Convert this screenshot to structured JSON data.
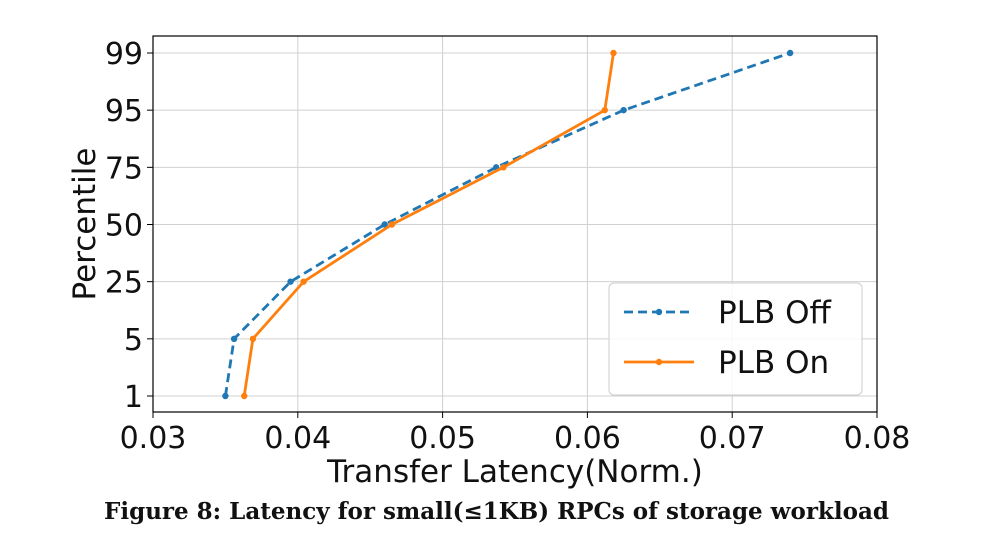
{
  "chart_data": {
    "type": "line",
    "title": "",
    "xlabel": "Transfer Latency(Norm.)",
    "ylabel": "Percentile",
    "xlim": [
      0.03,
      0.08
    ],
    "x_ticks": [
      "0.03",
      "0.04",
      "0.05",
      "0.06",
      "0.07",
      "0.08"
    ],
    "y_categories": [
      "1",
      "5",
      "25",
      "50",
      "75",
      "95",
      "99"
    ],
    "grid": true,
    "legend_position": "lower-right",
    "series": [
      {
        "name": "PLB Off",
        "color": "#1f77b4",
        "line_style": "dashed",
        "x": [
          0.035,
          0.0356,
          0.0395,
          0.046,
          0.0537,
          0.0625,
          0.074
        ],
        "y": [
          "1",
          "5",
          "25",
          "50",
          "75",
          "95",
          "99"
        ]
      },
      {
        "name": "PLB On",
        "color": "#ff7f0e",
        "line_style": "solid",
        "x": [
          0.0363,
          0.0369,
          0.0404,
          0.0465,
          0.0542,
          0.0612,
          0.0618
        ],
        "y": [
          "1",
          "5",
          "25",
          "50",
          "75",
          "95",
          "99"
        ]
      }
    ]
  },
  "caption": "Figure 8: Latency for small(≤1KB) RPCs of storage workload"
}
